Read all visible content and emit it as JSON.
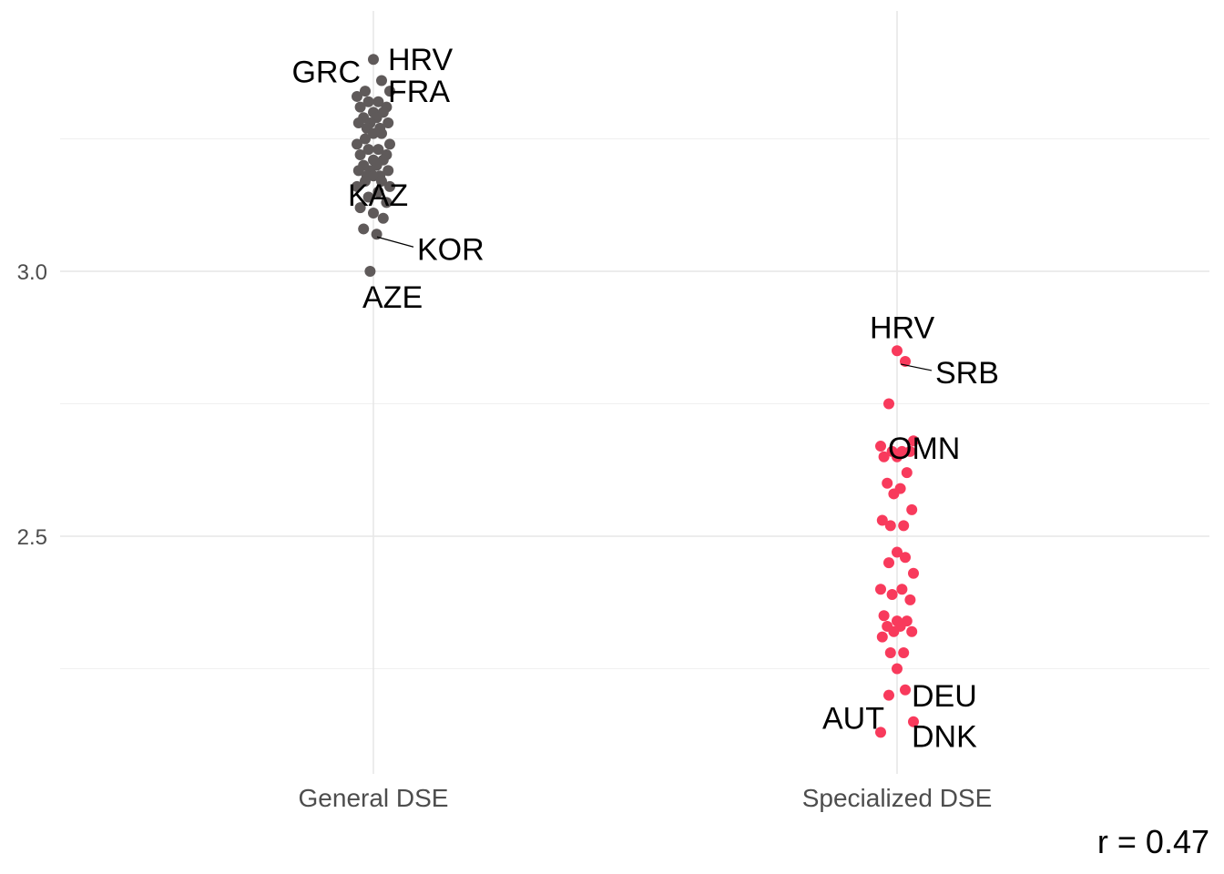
{
  "chart_data": {
    "type": "scatter",
    "categories": [
      "General DSE",
      "Specialized DSE"
    ],
    "ylim": [
      2.1,
      3.47
    ],
    "y_ticks": [
      2.5,
      3.0
    ],
    "y_tick_labels": [
      "2.5",
      "3.0"
    ],
    "grid": true,
    "caption": "r = 0.47",
    "colors": {
      "General DSE": "#5f5a5a",
      "Specialized DSE": "#f83a5c"
    },
    "series": [
      {
        "category": "General DSE",
        "values": [
          3.4,
          3.36,
          3.34,
          3.34,
          3.33,
          3.32,
          3.32,
          3.31,
          3.31,
          3.3,
          3.3,
          3.29,
          3.29,
          3.28,
          3.28,
          3.28,
          3.27,
          3.27,
          3.26,
          3.26,
          3.25,
          3.24,
          3.24,
          3.23,
          3.23,
          3.22,
          3.22,
          3.21,
          3.21,
          3.2,
          3.2,
          3.19,
          3.19,
          3.19,
          3.18,
          3.18,
          3.18,
          3.17,
          3.17,
          3.16,
          3.16,
          3.15,
          3.14,
          3.13,
          3.12,
          3.11,
          3.1,
          3.08,
          3.07,
          3.0
        ],
        "labels": [
          {
            "text": "HRV",
            "value": 3.4
          },
          {
            "text": "GRC",
            "value": 3.36
          },
          {
            "text": "FRA",
            "value": 3.34
          },
          {
            "text": "KAZ",
            "value": 3.11
          },
          {
            "text": "KOR",
            "value": 3.07
          },
          {
            "text": "AZE",
            "value": 3.0
          }
        ]
      },
      {
        "category": "Specialized DSE",
        "values": [
          2.85,
          2.83,
          2.75,
          2.68,
          2.67,
          2.66,
          2.66,
          2.66,
          2.65,
          2.65,
          2.62,
          2.6,
          2.59,
          2.58,
          2.55,
          2.53,
          2.52,
          2.52,
          2.47,
          2.46,
          2.45,
          2.43,
          2.4,
          2.4,
          2.39,
          2.38,
          2.35,
          2.34,
          2.34,
          2.33,
          2.33,
          2.32,
          2.32,
          2.31,
          2.28,
          2.28,
          2.25,
          2.21,
          2.2,
          2.15,
          2.13
        ],
        "labels": [
          {
            "text": "HRV",
            "value": 2.85
          },
          {
            "text": "SRB",
            "value": 2.83
          },
          {
            "text": "OMN",
            "value": 2.68
          },
          {
            "text": "DEU",
            "value": 2.21
          },
          {
            "text": "AUT",
            "value": 2.15
          },
          {
            "text": "DNK",
            "value": 2.13
          }
        ]
      }
    ]
  }
}
